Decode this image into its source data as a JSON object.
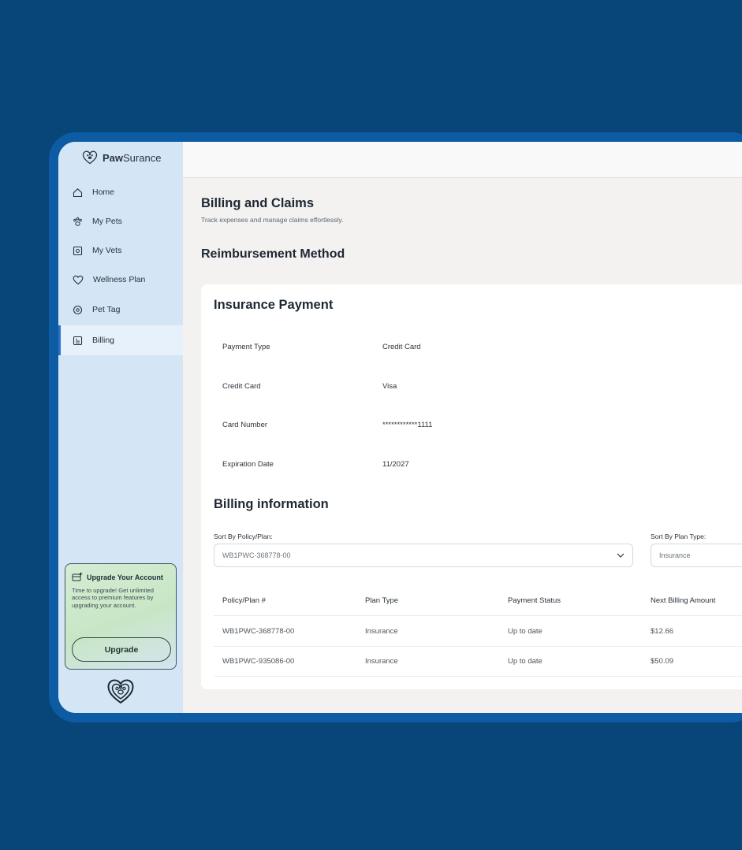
{
  "brand": {
    "name_bold": "Paw",
    "name_rest": "Surance"
  },
  "sidebar": {
    "items": [
      {
        "label": "Home",
        "icon": "home-icon"
      },
      {
        "label": "My Pets",
        "icon": "paw-icon"
      },
      {
        "label": "My Vets",
        "icon": "vet-icon"
      },
      {
        "label": "Wellness Plan",
        "icon": "heart-icon"
      },
      {
        "label": "Pet Tag",
        "icon": "tag-icon"
      },
      {
        "label": "Billing",
        "icon": "billing-icon",
        "active": true
      }
    ],
    "upgrade": {
      "title": "Upgrade Your Account",
      "text": "Time to upgrade! Get unlimited access to premium features by upgrading your account.",
      "button": "Upgrade"
    }
  },
  "page": {
    "title": "Billing and Claims",
    "subtitle": "Track expenses and manage claims effortlessly.",
    "section_title": "Reimbursement Method"
  },
  "insurance_payment": {
    "title": "Insurance Payment",
    "rows": [
      {
        "label": "Payment Type",
        "value": "Credit Card"
      },
      {
        "label": "Credit Card",
        "value": "Visa"
      },
      {
        "label": "Card Number",
        "value": "************1111"
      },
      {
        "label": "Expiration Date",
        "value": "11/2027"
      }
    ]
  },
  "billing": {
    "title": "Billing information",
    "sort_policy": {
      "label": "Sort By Policy/Plan:",
      "value": "WB1PWC-368778-00"
    },
    "sort_plan_type": {
      "label": "Sort By Plan Type:",
      "value": "Insurance"
    },
    "headers": [
      "Policy/Plan #",
      "Plan Type",
      "Payment Status",
      "Next Billing Amount"
    ],
    "rows": [
      [
        "WB1PWC-368778-00",
        "Insurance",
        "Up to date",
        "$12.66"
      ],
      [
        "WB1PWC-935086-00",
        "Insurance",
        "Up to date",
        "$50.09"
      ]
    ]
  },
  "colors": {
    "background": "#08467a",
    "frame": "#0d5ba3",
    "sidebar": "#d4e6f6",
    "active_accent": "#2a72c6"
  }
}
